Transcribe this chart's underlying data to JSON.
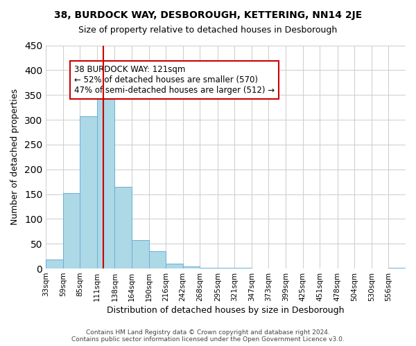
{
  "title": "38, BURDOCK WAY, DESBOROUGH, KETTERING, NN14 2JE",
  "subtitle": "Size of property relative to detached houses in Desborough",
  "xlabel": "Distribution of detached houses by size in Desborough",
  "ylabel": "Number of detached properties",
  "footer_line1": "Contains HM Land Registry data © Crown copyright and database right 2024.",
  "footer_line2": "Contains public sector information licensed under the Open Government Licence v3.0.",
  "bin_labels": [
    "33sqm",
    "59sqm",
    "85sqm",
    "111sqm",
    "138sqm",
    "164sqm",
    "190sqm",
    "216sqm",
    "242sqm",
    "268sqm",
    "295sqm",
    "321sqm",
    "347sqm",
    "373sqm",
    "399sqm",
    "425sqm",
    "451sqm",
    "478sqm",
    "504sqm",
    "530sqm",
    "556sqm"
  ],
  "bar_heights": [
    18,
    152,
    307,
    342,
    165,
    57,
    35,
    10,
    4,
    2,
    1,
    1,
    0,
    0,
    0,
    0,
    0,
    0,
    0,
    0,
    2
  ],
  "bar_color": "#add8e6",
  "bar_edge_color": "#6baed6",
  "vline_x": 121,
  "vline_label": "121sqm",
  "annotation_title": "38 BURDOCK WAY: 121sqm",
  "annotation_line1": "← 52% of detached houses are smaller (570)",
  "annotation_line2": "47% of semi-detached houses are larger (512) →",
  "annotation_box_color": "#ffffff",
  "annotation_box_edge": "#cc0000",
  "vline_color": "#cc0000",
  "ylim": [
    0,
    450
  ],
  "yticks": [
    0,
    50,
    100,
    150,
    200,
    250,
    300,
    350,
    400,
    450
  ],
  "bin_edges": [
    33,
    59,
    85,
    111,
    138,
    164,
    190,
    216,
    242,
    268,
    295,
    321,
    347,
    373,
    399,
    425,
    451,
    478,
    504,
    530,
    556,
    582
  ]
}
